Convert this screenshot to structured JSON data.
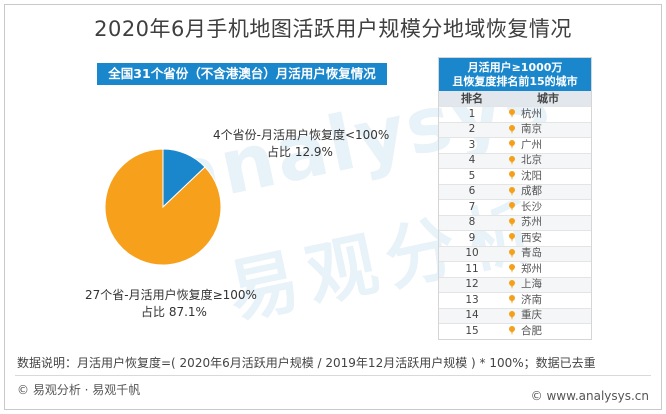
{
  "header": {
    "title": "2020年6月手机地图活跃用户规模分地域恢复情况"
  },
  "left_panel": {
    "banner": "全国31个省份（不含港澳台）月活用户恢复情况"
  },
  "chart_data": {
    "type": "pie",
    "title": "全国31个省份（不含港澳台）月活用户恢复情况",
    "slices": [
      {
        "label": "4个省份-月活用户恢复度<100%",
        "pct_label": "占比 12.9%",
        "value": 12.9,
        "color": "#1a87cc"
      },
      {
        "label": "27个省-月活用户恢复度≥100%",
        "pct_label": "占比 87.1%",
        "value": 87.1,
        "color": "#f7a01c"
      }
    ],
    "start_angle_deg": 0,
    "direction": "clockwise"
  },
  "ranking_table": {
    "header_line1": "月活用户≥1000万",
    "header_line2": "且恢复度排名前15的城市",
    "col_rank": "排名",
    "col_city": "城市",
    "rows": [
      {
        "rank": "1",
        "city": "杭州"
      },
      {
        "rank": "2",
        "city": "南京"
      },
      {
        "rank": "3",
        "city": "广州"
      },
      {
        "rank": "4",
        "city": "北京"
      },
      {
        "rank": "5",
        "city": "沈阳"
      },
      {
        "rank": "6",
        "city": "成都"
      },
      {
        "rank": "7",
        "city": "长沙"
      },
      {
        "rank": "8",
        "city": "苏州"
      },
      {
        "rank": "9",
        "city": "西安"
      },
      {
        "rank": "10",
        "city": "青岛"
      },
      {
        "rank": "11",
        "city": "郑州"
      },
      {
        "rank": "12",
        "city": "上海"
      },
      {
        "rank": "13",
        "city": "济南"
      },
      {
        "rank": "14",
        "city": "重庆"
      },
      {
        "rank": "15",
        "city": "合肥"
      }
    ],
    "pin_icon": "map-pin-icon",
    "pin_color": "#f4a01a"
  },
  "note": "数据说明：月活用户恢复度=( 2020年6月活跃用户规模 / 2019年12月活跃用户规模 ) * 100%；数据已去重",
  "footer": {
    "left": "© 易观分析 · 易观千帆",
    "right": "© www.analysys.cn"
  },
  "watermark": {
    "line1": "analysys",
    "line2": "易观分析"
  },
  "colors": {
    "accent": "#1a87cc",
    "orange": "#f7a01c"
  }
}
